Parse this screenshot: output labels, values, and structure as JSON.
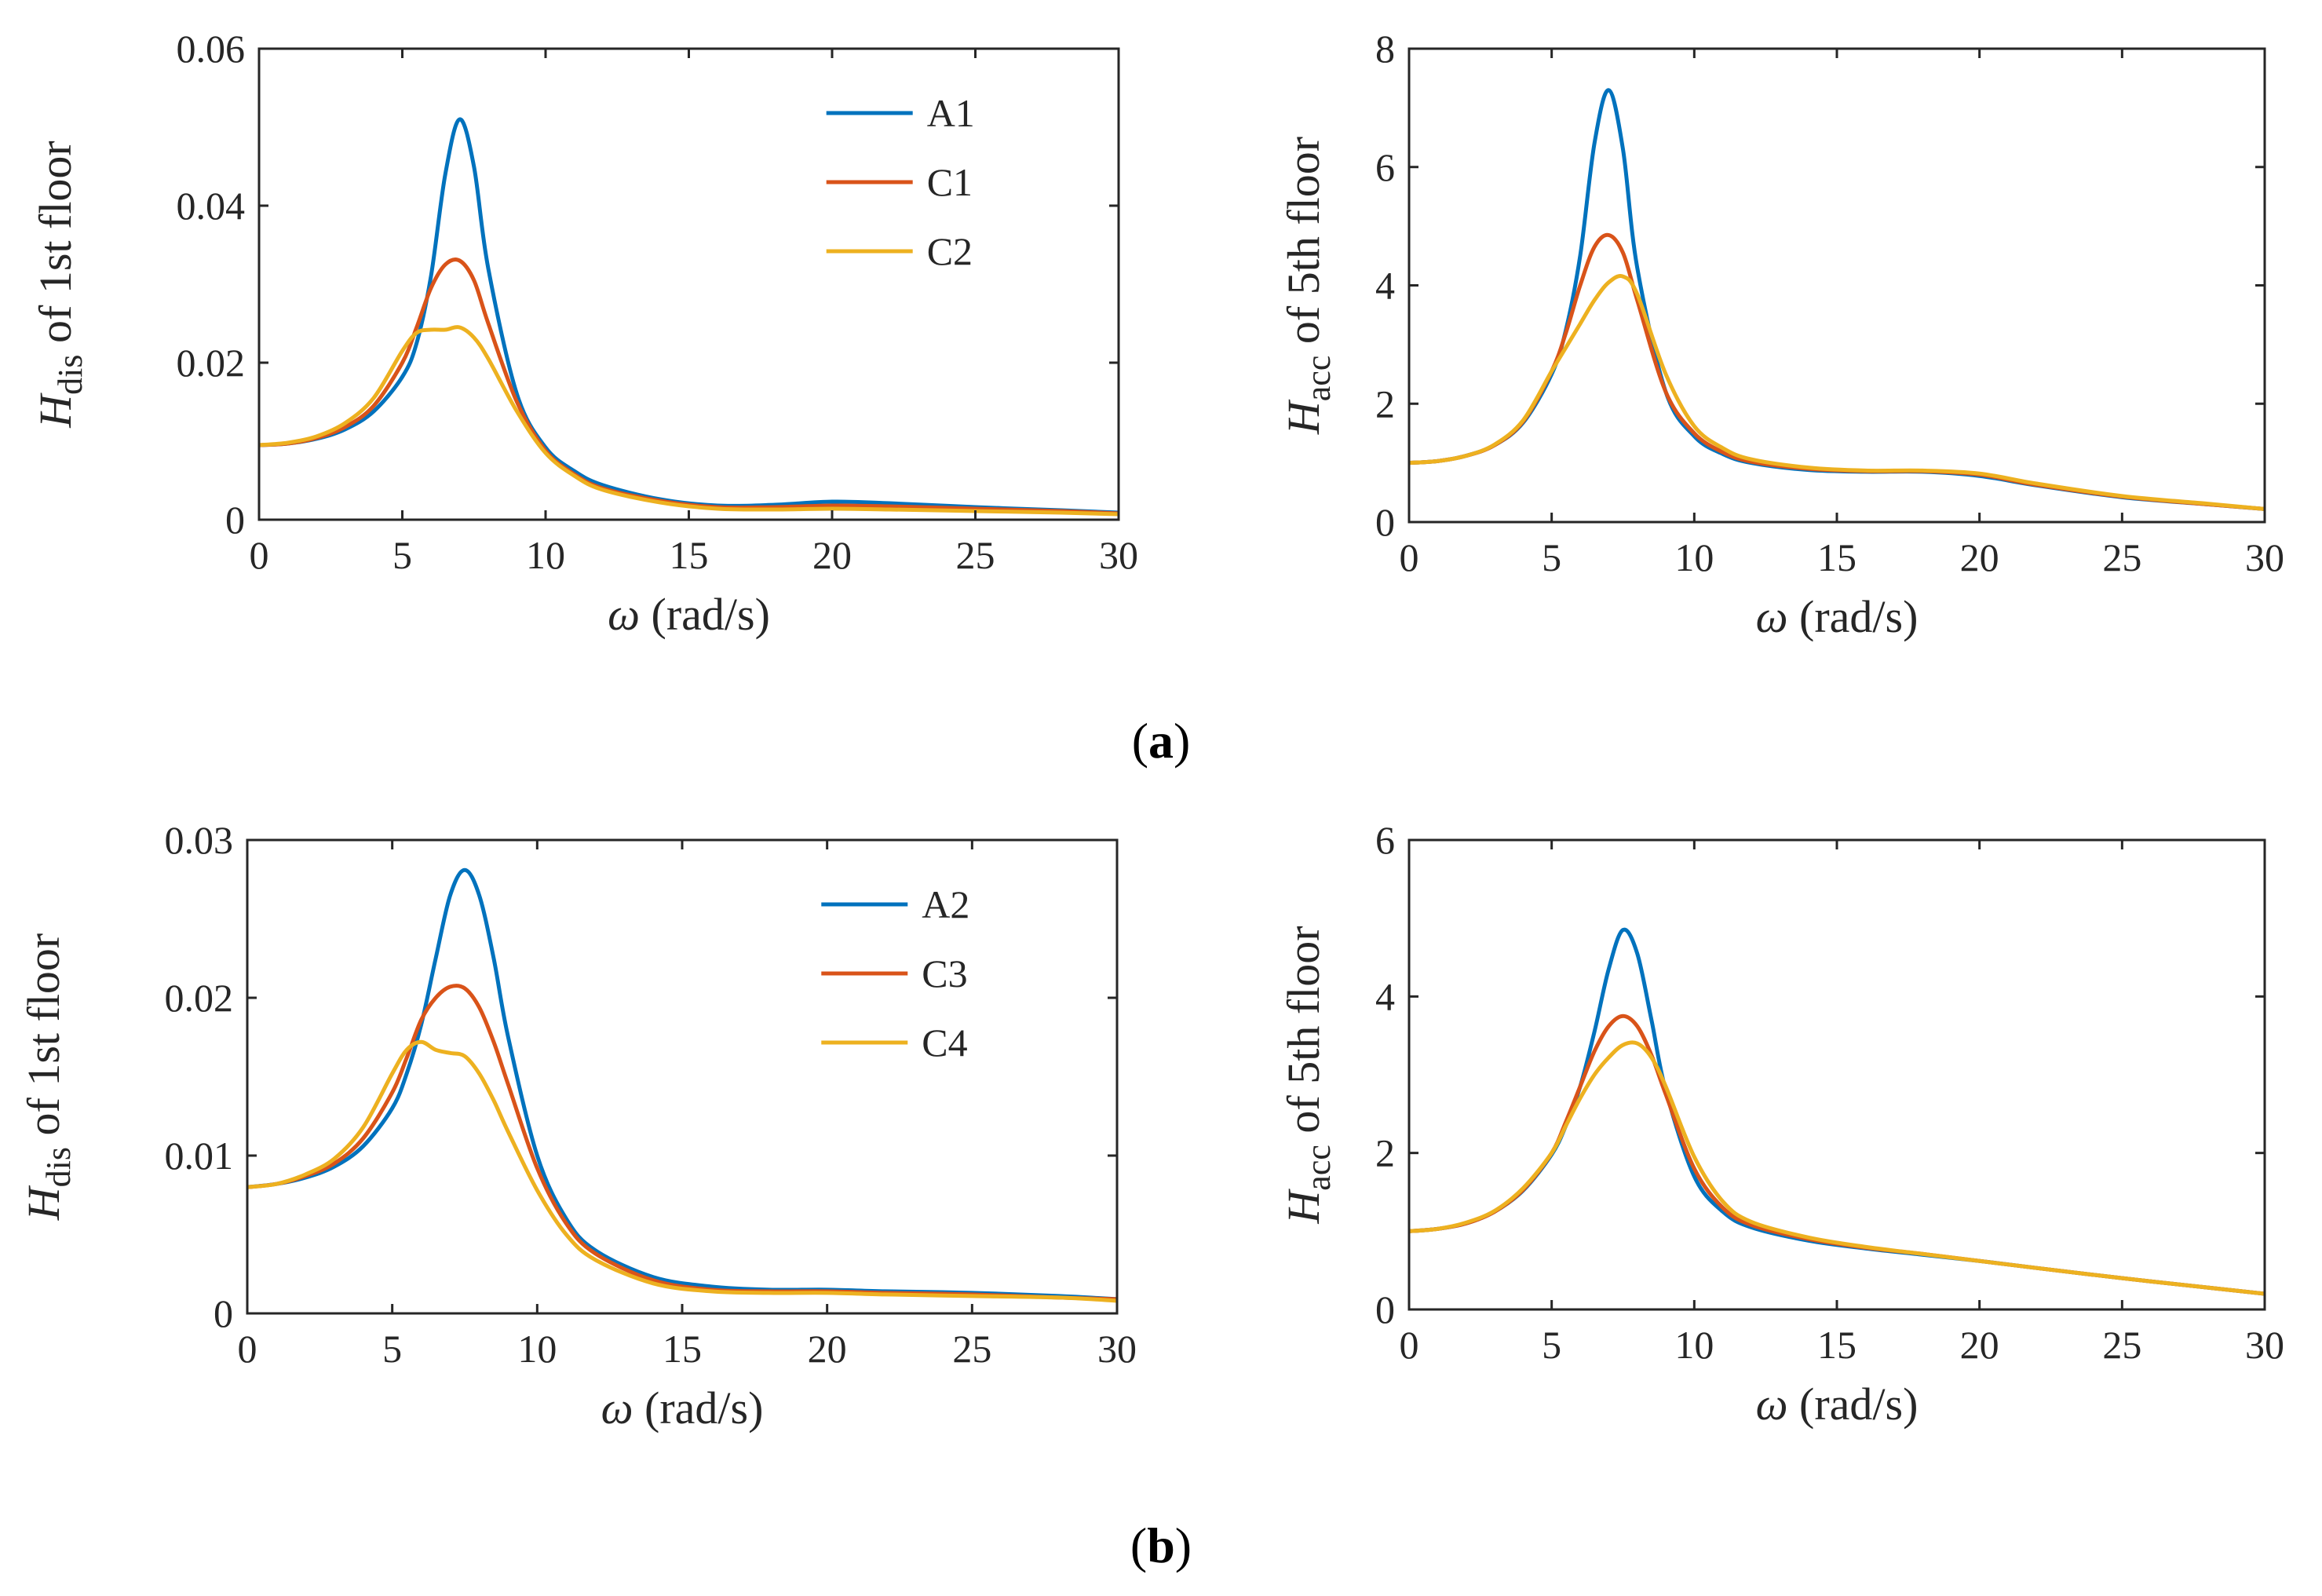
{
  "colors": {
    "A": "#0072BD",
    "C_first": "#D95319",
    "C_second": "#EDB120",
    "axis": "#262626"
  },
  "panel_labels": [
    {
      "open": "(",
      "letter": "a",
      "close": ")"
    },
    {
      "open": "(",
      "letter": "b",
      "close": ")"
    }
  ],
  "chart_data": [
    {
      "type": "line",
      "xlabel": {
        "symbol": "ω",
        "unit": " (rad/s)"
      },
      "ylabel": {
        "H": "H",
        "sub": "dis",
        "rest": " of 1st floor"
      },
      "xlim": [
        0,
        30
      ],
      "ylim": [
        0,
        0.06
      ],
      "xticks": [
        "0",
        "5",
        "10",
        "15",
        "20",
        "25",
        "30"
      ],
      "yticks": [
        "0",
        "0.02",
        "0.04",
        "0.06"
      ],
      "ytick_values": [
        0,
        0.02,
        0.04,
        0.06
      ],
      "legend": "upper-right",
      "x": [
        0,
        1,
        2,
        3,
        4,
        5,
        5.5,
        6,
        6.5,
        7,
        7.5,
        8,
        9,
        10,
        11,
        12,
        14,
        16,
        18,
        20,
        22,
        25,
        28,
        30
      ],
      "series": [
        {
          "name": "A1",
          "color": "#0072BD",
          "values": [
            0.0095,
            0.0097,
            0.0103,
            0.0115,
            0.0138,
            0.0182,
            0.0225,
            0.031,
            0.044,
            0.051,
            0.045,
            0.032,
            0.016,
            0.0092,
            0.0062,
            0.0044,
            0.0026,
            0.0018,
            0.0019,
            0.0023,
            0.0021,
            0.0016,
            0.0012,
            0.0009
          ]
        },
        {
          "name": "C1",
          "color": "#D95319",
          "values": [
            0.0095,
            0.0097,
            0.0104,
            0.0118,
            0.0145,
            0.02,
            0.0245,
            0.0295,
            0.0325,
            0.033,
            0.0305,
            0.025,
            0.015,
            0.0088,
            0.0058,
            0.004,
            0.0024,
            0.0016,
            0.0016,
            0.0018,
            0.0017,
            0.0014,
            0.0011,
            0.0008
          ]
        },
        {
          "name": "C2",
          "color": "#EDB120",
          "values": [
            0.0095,
            0.0098,
            0.0106,
            0.0123,
            0.0155,
            0.0215,
            0.0238,
            0.0242,
            0.0242,
            0.0245,
            0.0232,
            0.0205,
            0.0138,
            0.0085,
            0.0056,
            0.0038,
            0.0022,
            0.0014,
            0.0013,
            0.0014,
            0.0013,
            0.0011,
            0.0009,
            0.0007
          ]
        }
      ]
    },
    {
      "type": "line",
      "xlabel": {
        "symbol": "ω",
        "unit": " (rad/s)"
      },
      "ylabel": {
        "H": "H",
        "sub": "acc",
        "rest": " of 5th floor"
      },
      "xlim": [
        0,
        30
      ],
      "ylim": [
        0,
        8
      ],
      "xticks": [
        "0",
        "5",
        "10",
        "15",
        "20",
        "25",
        "30"
      ],
      "yticks": [
        "0",
        "2",
        "4",
        "6",
        "8"
      ],
      "ytick_values": [
        0,
        2,
        4,
        6,
        8
      ],
      "legend": "none",
      "x": [
        0,
        1,
        2,
        3,
        4,
        5,
        5.5,
        6,
        6.5,
        7,
        7.5,
        8,
        9,
        10,
        11,
        12,
        14,
        16,
        18,
        20,
        22,
        25,
        28,
        30
      ],
      "series": [
        {
          "name": "A1",
          "color": "#0072BD",
          "values": [
            1.0,
            1.03,
            1.12,
            1.3,
            1.68,
            2.5,
            3.25,
            4.5,
            6.4,
            7.3,
            6.3,
            4.3,
            2.2,
            1.45,
            1.15,
            1.0,
            0.88,
            0.85,
            0.85,
            0.78,
            0.62,
            0.42,
            0.3,
            0.22
          ]
        },
        {
          "name": "C1",
          "color": "#D95319",
          "values": [
            1.0,
            1.03,
            1.12,
            1.3,
            1.7,
            2.55,
            3.2,
            4.0,
            4.65,
            4.85,
            4.55,
            3.75,
            2.2,
            1.5,
            1.18,
            1.02,
            0.9,
            0.86,
            0.86,
            0.8,
            0.63,
            0.43,
            0.3,
            0.22
          ]
        },
        {
          "name": "C2",
          "color": "#EDB120",
          "values": [
            1.0,
            1.03,
            1.12,
            1.31,
            1.72,
            2.55,
            2.95,
            3.35,
            3.75,
            4.05,
            4.15,
            3.85,
            2.5,
            1.62,
            1.25,
            1.06,
            0.92,
            0.87,
            0.87,
            0.82,
            0.65,
            0.44,
            0.31,
            0.22
          ]
        }
      ]
    },
    {
      "type": "line",
      "xlabel": {
        "symbol": "ω",
        "unit": " (rad/s)"
      },
      "ylabel": {
        "H": "H",
        "sub": "dis",
        "rest": " of 1st floor"
      },
      "xlim": [
        0,
        30
      ],
      "ylim": [
        0,
        0.03
      ],
      "xticks": [
        "0",
        "5",
        "10",
        "15",
        "20",
        "25",
        "30"
      ],
      "yticks": [
        "0",
        "0.01",
        "0.02",
        "0.03"
      ],
      "ytick_values": [
        0,
        0.01,
        0.02,
        0.03
      ],
      "legend": "upper-right",
      "x": [
        0,
        1,
        2,
        3,
        4,
        5,
        5.5,
        6,
        6.5,
        7,
        7.5,
        8,
        8.5,
        9,
        10,
        11,
        12,
        14,
        16,
        18,
        20,
        22,
        25,
        28,
        30
      ],
      "series": [
        {
          "name": "A2",
          "color": "#0072BD",
          "values": [
            0.008,
            0.0082,
            0.0086,
            0.0093,
            0.0106,
            0.013,
            0.0152,
            0.0183,
            0.0225,
            0.0265,
            0.0281,
            0.0265,
            0.0225,
            0.0175,
            0.01,
            0.006,
            0.004,
            0.0023,
            0.0017,
            0.0015,
            0.0015,
            0.0014,
            0.0013,
            0.0011,
            0.0009
          ]
        },
        {
          "name": "C3",
          "color": "#D95319",
          "values": [
            0.008,
            0.0082,
            0.0087,
            0.0095,
            0.0111,
            0.014,
            0.0162,
            0.0186,
            0.02,
            0.0207,
            0.0206,
            0.0194,
            0.0172,
            0.0145,
            0.0092,
            0.0057,
            0.0038,
            0.0021,
            0.0015,
            0.0014,
            0.0014,
            0.0013,
            0.0012,
            0.001,
            0.0009
          ]
        },
        {
          "name": "C4",
          "color": "#EDB120",
          "values": [
            0.008,
            0.0082,
            0.0088,
            0.0098,
            0.0118,
            0.0152,
            0.0167,
            0.0172,
            0.0167,
            0.0165,
            0.0163,
            0.0152,
            0.0135,
            0.0115,
            0.0078,
            0.005,
            0.0034,
            0.0019,
            0.0014,
            0.0013,
            0.0013,
            0.0012,
            0.0011,
            0.001,
            0.0008
          ]
        }
      ]
    },
    {
      "type": "line",
      "xlabel": {
        "symbol": "ω",
        "unit": " (rad/s)"
      },
      "ylabel": {
        "H": "H",
        "sub": "acc",
        "rest": " of 5th floor"
      },
      "xlim": [
        0,
        30
      ],
      "ylim": [
        0,
        6
      ],
      "xticks": [
        "0",
        "5",
        "10",
        "15",
        "20",
        "25",
        "30"
      ],
      "yticks": [
        "0",
        "2",
        "4",
        "6"
      ],
      "ytick_values": [
        0,
        2,
        4,
        6
      ],
      "legend": "none",
      "x": [
        0,
        1,
        2,
        3,
        4,
        5,
        5.5,
        6,
        6.5,
        7,
        7.5,
        8,
        8.5,
        9,
        10,
        11,
        12,
        14,
        16,
        18,
        20,
        22,
        25,
        28,
        30
      ],
      "series": [
        {
          "name": "A2",
          "color": "#0072BD",
          "values": [
            1.0,
            1.03,
            1.1,
            1.25,
            1.52,
            1.98,
            2.35,
            2.85,
            3.55,
            4.35,
            4.85,
            4.55,
            3.7,
            2.8,
            1.7,
            1.25,
            1.05,
            0.88,
            0.78,
            0.7,
            0.62,
            0.53,
            0.4,
            0.28,
            0.2
          ]
        },
        {
          "name": "C3",
          "color": "#D95319",
          "values": [
            1.0,
            1.03,
            1.1,
            1.25,
            1.53,
            2.0,
            2.4,
            2.85,
            3.3,
            3.62,
            3.75,
            3.62,
            3.25,
            2.75,
            1.8,
            1.3,
            1.08,
            0.9,
            0.79,
            0.71,
            0.62,
            0.53,
            0.4,
            0.28,
            0.2
          ]
        },
        {
          "name": "C4",
          "color": "#EDB120",
          "values": [
            1.0,
            1.03,
            1.11,
            1.26,
            1.55,
            2.0,
            2.35,
            2.7,
            3.0,
            3.22,
            3.38,
            3.4,
            3.22,
            2.85,
            1.95,
            1.38,
            1.12,
            0.92,
            0.8,
            0.71,
            0.62,
            0.53,
            0.4,
            0.28,
            0.2
          ]
        }
      ]
    }
  ]
}
